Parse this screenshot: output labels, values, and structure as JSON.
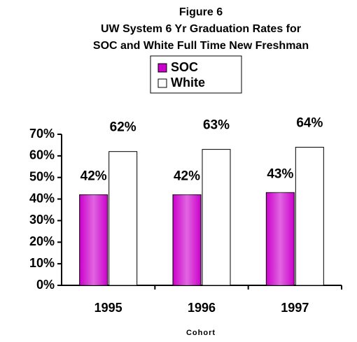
{
  "chart_data": {
    "type": "bar",
    "title": [
      "Figure 6",
      "UW System 6 Yr Graduation Rates for",
      "SOC and White Full Time New Freshman"
    ],
    "x_label": "Cohort",
    "categories": [
      "1995",
      "1996",
      "1997"
    ],
    "series": [
      {
        "name": "SOC",
        "color": "#cc00cc",
        "values": [
          42,
          42,
          43
        ],
        "value_labels": [
          "42%",
          "42%",
          "43%"
        ]
      },
      {
        "name": "White",
        "color": "#ffffff",
        "values": [
          62,
          63,
          64
        ],
        "value_labels": [
          "62%",
          "63%",
          "64%"
        ]
      }
    ],
    "ylim": [
      0,
      70
    ],
    "yticks": [
      {
        "value": 0,
        "label": "0%"
      },
      {
        "value": 10,
        "label": "10%"
      },
      {
        "value": 20,
        "label": "20%"
      },
      {
        "value": 30,
        "label": "30%"
      },
      {
        "value": 40,
        "label": "40%"
      },
      {
        "value": 50,
        "label": "50%"
      },
      {
        "value": 60,
        "label": "60%"
      },
      {
        "value": 70,
        "label": "70%"
      }
    ],
    "grid": false
  }
}
